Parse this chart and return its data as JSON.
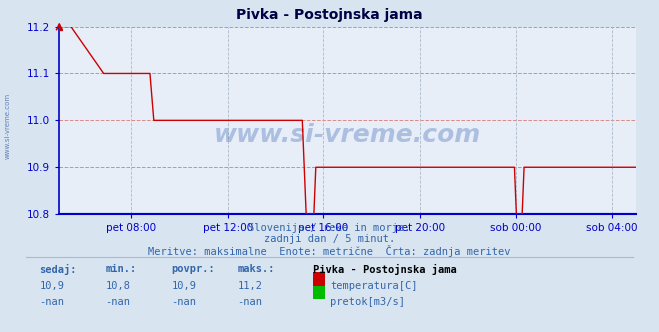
{
  "title": "Pivka - Postojnska jama",
  "bg_color": "#d8e4f0",
  "plot_bg_color": "#e8eef8",
  "line_color_temp": "#cc0000",
  "line_color_pretok": "#00bb00",
  "axis_color": "#0000cc",
  "text_color": "#3366aa",
  "title_color": "#000044",
  "ylim": [
    10.8,
    11.2
  ],
  "yticks": [
    10.8,
    10.9,
    11.0,
    11.1,
    11.2
  ],
  "subtitle1": "Slovenija / reke in morje.",
  "subtitle2": "zadnji dan / 5 minut.",
  "subtitle3": "Meritve: maksimalne  Enote: metrične  Črta: zadnja meritev",
  "legend_title": "Pivka - Postojnska jama",
  "legend_temp": "temperatura[C]",
  "legend_pretok": "pretok[m3/s]",
  "stats_headers": [
    "sedaj:",
    "min.:",
    "povpr.:",
    "maks.:"
  ],
  "stats_temp": [
    "10,9",
    "10,8",
    "10,9",
    "11,2"
  ],
  "stats_pretok": [
    "-nan",
    "-nan",
    "-nan",
    "-nan"
  ],
  "xtick_labels": [
    "pet 08:00",
    "pet 12:00",
    "pet 16:00",
    "pet 20:00",
    "sob 00:00",
    "sob 04:00"
  ],
  "xtick_positions": [
    0.125,
    0.292,
    0.458,
    0.625,
    0.792,
    0.958
  ],
  "watermark": "www.si-vreme.com",
  "grid_dashed_color": "#dd8888",
  "grid_solid_color": "#aabbdd",
  "vgrid_color": "#aabbcc"
}
